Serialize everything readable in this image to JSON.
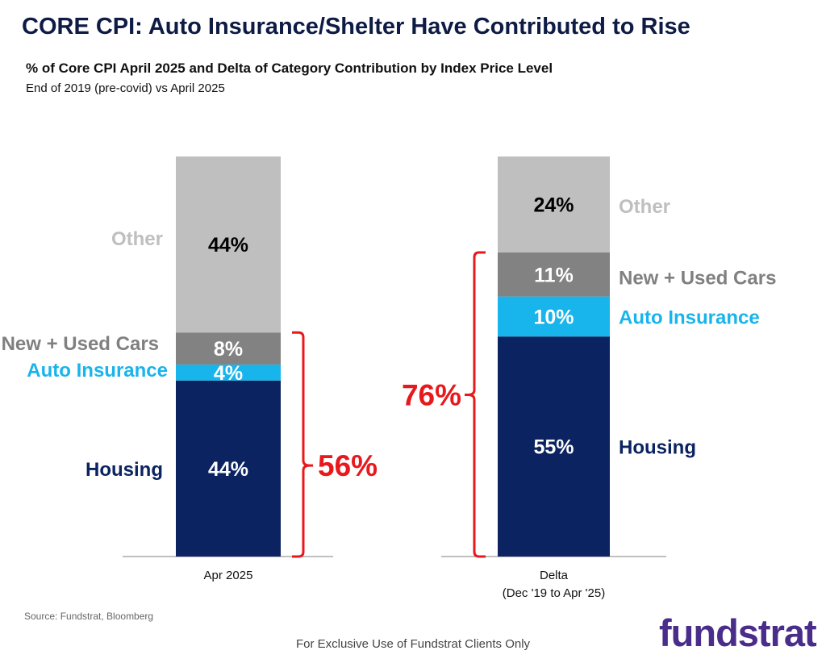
{
  "header": {
    "title": "CORE CPI: Auto Insurance/Shelter Have Contributed to Rise",
    "subtitle": "% of Core CPI April 2025 and Delta of Category Contribution by Index Price Level",
    "subtitle2": "End of 2019 (pre-covid) vs April 2025"
  },
  "chart_data": {
    "type": "bar",
    "stacked": true,
    "categories": [
      "Apr 2025",
      "Delta (Dec '19 to Apr '25)"
    ],
    "category_labels": [
      [
        "Apr 2025"
      ],
      [
        "Delta",
        "(Dec '19 to Apr '25)"
      ]
    ],
    "series": [
      {
        "name": "Housing",
        "values": [
          44,
          55
        ],
        "labels": [
          "44%",
          "55%"
        ],
        "color": "#0b2361",
        "text_color": "#ffffff"
      },
      {
        "name": "Auto Insurance",
        "values": [
          4,
          10
        ],
        "labels": [
          "4%",
          "10%"
        ],
        "color": "#18b4ec",
        "text_color": "#ffffff"
      },
      {
        "name": "New + Used Cars",
        "values": [
          8,
          11
        ],
        "labels": [
          "8%",
          "11%"
        ],
        "color": "#828282",
        "text_color": "#ffffff"
      },
      {
        "name": "Other",
        "values": [
          44,
          24
        ],
        "labels": [
          "44%",
          "24%"
        ],
        "color": "#bfbfbf",
        "text_color": "#000000"
      }
    ],
    "series_label_colors": {
      "Housing": "#0b2361",
      "Auto Insurance": "#18b4ec",
      "New + Used Cars": "#808080",
      "Other": "#bfbfbf"
    },
    "brackets": [
      {
        "category": "Apr 2025",
        "label": "56%",
        "side": "right",
        "spans": [
          "Housing",
          "Auto Insurance",
          "New + Used Cars"
        ]
      },
      {
        "category": "Delta (Dec '19 to Apr '25)",
        "label": "76%",
        "side": "left",
        "spans": [
          "Housing",
          "Auto Insurance",
          "New + Used Cars"
        ]
      }
    ],
    "bracket_color": "#e8181c",
    "ylim": [
      0,
      100
    ],
    "legend": "inline"
  },
  "footer": {
    "source": "Source: Fundstrat, Bloomberg",
    "disclaimer": "For Exclusive Use of Fundstrat Clients Only",
    "logo": "fundstrat"
  }
}
